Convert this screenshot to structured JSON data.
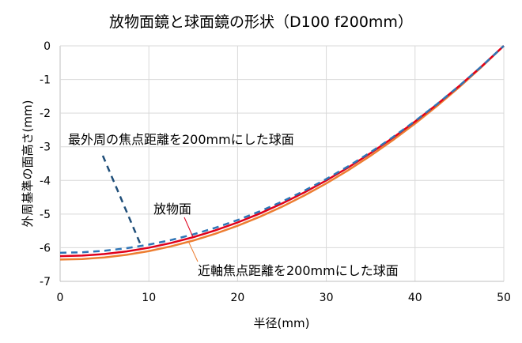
{
  "chart_data": {
    "type": "line",
    "title": "放物面鏡と球面鏡の形状（D100 f200mm）",
    "xlabel": "半径(mm)",
    "ylabel": "外周基準の面高さ(mm)",
    "xlim": [
      0,
      50
    ],
    "ylim": [
      -7,
      0
    ],
    "xticks": [
      "0",
      "10",
      "20",
      "30",
      "40",
      "50"
    ],
    "yticks": [
      "0",
      "-1",
      "-2",
      "-3",
      "-4",
      "-5",
      "-6",
      "-7"
    ],
    "grid": true,
    "series": [
      {
        "name": "最外周の焦点距離を200mmにした球面",
        "color": "#2e75b6",
        "style": "dashed",
        "sphere_radius": 206.3
      },
      {
        "name": "放物面",
        "color": "#e0001b",
        "style": "solid",
        "focal": 100
      },
      {
        "name": "近軸焦点距離を200mmにした球面",
        "color": "#ed7d31",
        "style": "solid",
        "sphere_radius": 200
      }
    ],
    "x": [
      0,
      2.5,
      5,
      7.5,
      10,
      12.5,
      15,
      17.5,
      20,
      22.5,
      25,
      27.5,
      30,
      32.5,
      35,
      37.5,
      40,
      42.5,
      45,
      47.5,
      50
    ],
    "annotations": [
      "最外周の焦点距離を200mmにした球面",
      "放物面",
      "近軸焦点距離を200mmにした球面"
    ]
  }
}
